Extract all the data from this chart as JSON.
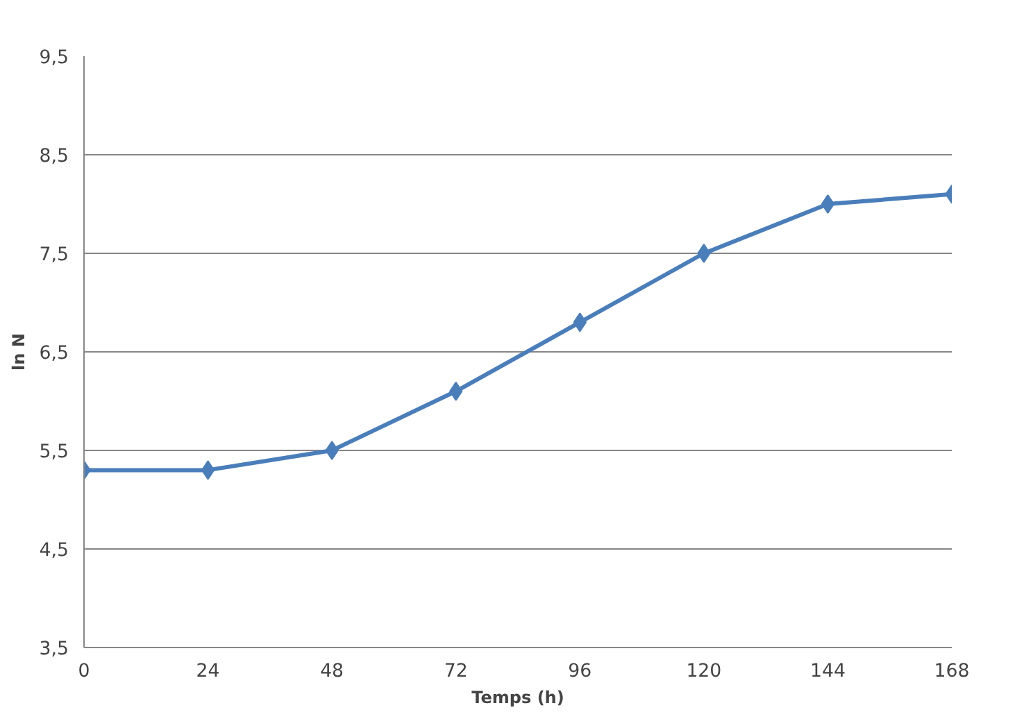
{
  "chart_data": {
    "type": "line",
    "xlabel": "Temps (h)",
    "ylabel": "ln N",
    "categories": [
      "0",
      "24",
      "48",
      "72",
      "96",
      "120",
      "144",
      "168"
    ],
    "series": [
      {
        "color": "#4a7ebb",
        "values": [
          5.3,
          5.3,
          5.5,
          6.1,
          6.8,
          7.5,
          8.0,
          8.1
        ]
      }
    ],
    "ylim": [
      3.5,
      9.5
    ],
    "yticks": [
      {
        "value": 3.5,
        "label": "3,5"
      },
      {
        "value": 4.5,
        "label": "4,5"
      },
      {
        "value": 5.5,
        "label": "5,5"
      },
      {
        "value": 6.5,
        "label": "6,5"
      },
      {
        "value": 7.5,
        "label": "7,5"
      },
      {
        "value": 8.5,
        "label": "8,5"
      },
      {
        "value": 9.5,
        "label": "9,5"
      }
    ],
    "grid": "y",
    "marker": "diamond",
    "line_style": "solid"
  }
}
